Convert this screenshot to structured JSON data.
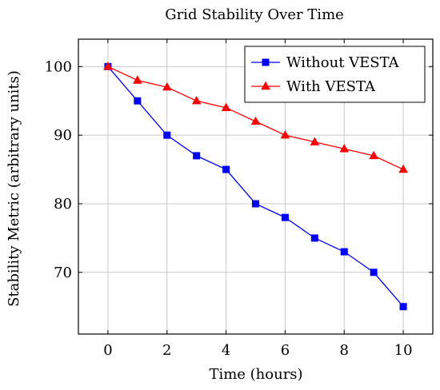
{
  "chart_data": {
    "type": "line",
    "title": "Grid Stability Over Time",
    "xlabel": "Time (hours)",
    "ylabel": "Stability Metric (arbitrary units)",
    "xlim": [
      -1,
      11
    ],
    "ylim": [
      61,
      104
    ],
    "x_ticks": [
      0,
      2,
      4,
      6,
      8,
      10
    ],
    "y_ticks": [
      70,
      80,
      90,
      100
    ],
    "grid": true,
    "legend_position": "top-right",
    "x": [
      0,
      1,
      2,
      3,
      4,
      5,
      6,
      7,
      8,
      9,
      10
    ],
    "series": [
      {
        "name": "Without VESTA",
        "color": "#0000ff",
        "marker": "square",
        "values": [
          100,
          95,
          90,
          87,
          85,
          80,
          78,
          75,
          73,
          70,
          65
        ]
      },
      {
        "name": "With VESTA",
        "color": "#ff0000",
        "marker": "triangle",
        "values": [
          100,
          98,
          97,
          95,
          94,
          92,
          90,
          89,
          88,
          87,
          85
        ]
      }
    ]
  }
}
